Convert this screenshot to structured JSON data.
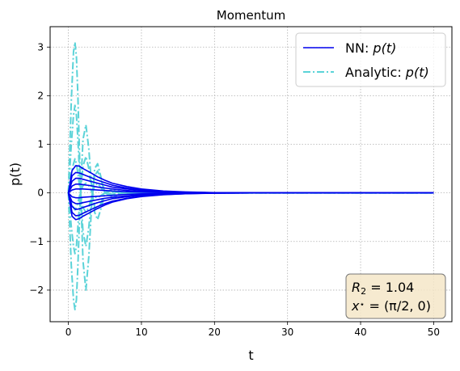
{
  "chart_data": {
    "type": "line",
    "title": "Momentum",
    "xlabel": "t",
    "ylabel": "p(t)",
    "xlim": [
      -2.5,
      52.5
    ],
    "ylim": [
      -2.65,
      3.42
    ],
    "xticks": [
      0,
      10,
      20,
      30,
      40,
      50
    ],
    "xtick_labels": [
      "0",
      "10",
      "20",
      "30",
      "40",
      "50"
    ],
    "yticks": [
      -2,
      -1,
      0,
      1,
      2,
      3
    ],
    "ytick_labels": [
      "−2",
      "−1",
      "0",
      "1",
      "2",
      "3"
    ],
    "grid": true,
    "legend_position": "top-right",
    "legend": [
      {
        "label_prefix": "NN: ",
        "label_math": "p(t)",
        "color": "#0000ee",
        "style": "solid"
      },
      {
        "label_prefix": "Analytic: ",
        "label_math": "p(t)",
        "color": "#5bd3d8",
        "style": "dashdot"
      }
    ],
    "annotation": {
      "lines": [
        {
          "parts": [
            {
              "text": "R",
              "italic": true
            },
            {
              "text": "2",
              "sub": true
            },
            {
              "text": " = 1.04"
            }
          ]
        },
        {
          "parts": [
            {
              "text": "x",
              "italic": true
            },
            {
              "text": "⋆",
              "sup": true
            },
            {
              "text": " = (π/2, 0)"
            }
          ]
        }
      ],
      "position": "bottom-right",
      "background": "#f5e6c8"
    },
    "series": [
      {
        "group": "NN",
        "color": "#0000ee",
        "x": [
          0,
          0.5,
          1,
          1.5,
          2,
          3,
          4,
          5,
          6,
          8,
          10,
          13,
          16,
          20,
          25,
          30,
          40,
          50
        ],
        "y": [
          0,
          0.46,
          0.56,
          0.55,
          0.5,
          0.42,
          0.33,
          0.26,
          0.2,
          0.13,
          0.08,
          0.04,
          0.02,
          0.005,
          0,
          0,
          0,
          0
        ]
      },
      {
        "group": "NN",
        "color": "#0000ee",
        "x": [
          0,
          0.5,
          1,
          1.5,
          2,
          3,
          4,
          5,
          6,
          8,
          10,
          13,
          16,
          20,
          25,
          30,
          40,
          50
        ],
        "y": [
          0,
          0.35,
          0.42,
          0.41,
          0.38,
          0.32,
          0.26,
          0.21,
          0.16,
          0.1,
          0.06,
          0.03,
          0.015,
          0.004,
          0,
          0,
          0,
          0
        ]
      },
      {
        "group": "NN",
        "color": "#0000ee",
        "x": [
          0,
          0.5,
          1,
          1.5,
          2,
          3,
          4,
          5,
          6,
          8,
          10,
          13,
          16,
          20,
          25,
          30,
          40,
          50
        ],
        "y": [
          0,
          0.24,
          0.3,
          0.3,
          0.28,
          0.24,
          0.2,
          0.16,
          0.12,
          0.08,
          0.05,
          0.025,
          0.012,
          0.003,
          0,
          0,
          0,
          0
        ]
      },
      {
        "group": "NN",
        "color": "#0000ee",
        "x": [
          0,
          0.5,
          1,
          1.5,
          2,
          3,
          4,
          5,
          6,
          8,
          10,
          13,
          16,
          20,
          25,
          30,
          40,
          50
        ],
        "y": [
          0,
          0.14,
          0.18,
          0.18,
          0.17,
          0.15,
          0.12,
          0.1,
          0.08,
          0.05,
          0.03,
          0.015,
          0.007,
          0.002,
          0,
          0,
          0,
          0
        ]
      },
      {
        "group": "NN",
        "color": "#0000ee",
        "x": [
          0,
          0.5,
          1,
          1.5,
          2,
          3,
          4,
          5,
          6,
          8,
          10,
          13,
          16,
          20,
          25,
          30,
          40,
          50
        ],
        "y": [
          0,
          0.06,
          0.08,
          0.08,
          0.08,
          0.07,
          0.06,
          0.05,
          0.04,
          0.025,
          0.015,
          0.008,
          0.004,
          0.001,
          0,
          0,
          0,
          0
        ]
      },
      {
        "group": "NN",
        "color": "#0000ee",
        "x": [
          0,
          0.5,
          1,
          1.5,
          2,
          3,
          4,
          5,
          6,
          8,
          10,
          13,
          16,
          20,
          25,
          30,
          40,
          50
        ],
        "y": [
          0,
          -0.08,
          -0.1,
          -0.1,
          -0.09,
          -0.08,
          -0.07,
          -0.06,
          -0.05,
          -0.03,
          -0.02,
          -0.01,
          -0.005,
          -0.001,
          0,
          0,
          0,
          0
        ]
      },
      {
        "group": "NN",
        "color": "#0000ee",
        "x": [
          0,
          0.5,
          1,
          1.5,
          2,
          3,
          4,
          5,
          6,
          8,
          10,
          13,
          16,
          20,
          25,
          30,
          40,
          50
        ],
        "y": [
          0,
          -0.18,
          -0.22,
          -0.22,
          -0.2,
          -0.17,
          -0.14,
          -0.11,
          -0.09,
          -0.06,
          -0.035,
          -0.018,
          -0.009,
          -0.002,
          0,
          0,
          0,
          0
        ]
      },
      {
        "group": "NN",
        "color": "#0000ee",
        "x": [
          0,
          0.5,
          1,
          1.5,
          2,
          3,
          4,
          5,
          6,
          8,
          10,
          13,
          16,
          20,
          25,
          30,
          40,
          50
        ],
        "y": [
          0,
          -0.28,
          -0.34,
          -0.33,
          -0.3,
          -0.25,
          -0.2,
          -0.16,
          -0.12,
          -0.08,
          -0.05,
          -0.025,
          -0.012,
          -0.003,
          0,
          0,
          0,
          0
        ]
      },
      {
        "group": "NN",
        "color": "#0000ee",
        "x": [
          0,
          0.5,
          1,
          1.5,
          2,
          3,
          4,
          5,
          6,
          8,
          10,
          13,
          16,
          20,
          25,
          30,
          40,
          50
        ],
        "y": [
          0,
          -0.4,
          -0.47,
          -0.46,
          -0.42,
          -0.35,
          -0.28,
          -0.22,
          -0.17,
          -0.11,
          -0.07,
          -0.035,
          -0.017,
          -0.004,
          0,
          0,
          0,
          0
        ]
      },
      {
        "group": "NN",
        "color": "#0000ee",
        "x": [
          0,
          0.5,
          1,
          1.5,
          2,
          3,
          4,
          5,
          6,
          8,
          10,
          13,
          16,
          20,
          25,
          30,
          40,
          50
        ],
        "y": [
          0,
          -0.48,
          -0.55,
          -0.53,
          -0.48,
          -0.4,
          -0.32,
          -0.25,
          -0.19,
          -0.12,
          -0.075,
          -0.038,
          -0.018,
          -0.005,
          0,
          0,
          0,
          0
        ]
      },
      {
        "group": "Analytic",
        "color": "#5bd3d8",
        "x": [
          0,
          0.4,
          0.7,
          0.9,
          1.1,
          1.3,
          1.6,
          2,
          2.4,
          2.8,
          3.2,
          3.6,
          4,
          4.5,
          5,
          6,
          8,
          10,
          15,
          20,
          30,
          40,
          50
        ],
        "y": [
          0,
          1.9,
          2.9,
          3.1,
          2.8,
          2,
          0.4,
          -1.4,
          -2.0,
          -1.3,
          -0.2,
          0.5,
          0.6,
          0.3,
          0,
          -0.1,
          0.03,
          0,
          0,
          0,
          0,
          0,
          0
        ]
      },
      {
        "group": "Analytic",
        "color": "#5bd3d8",
        "x": [
          0,
          0.4,
          0.7,
          0.9,
          1.1,
          1.3,
          1.6,
          2,
          2.4,
          2.8,
          3.2,
          3.6,
          4,
          4.5,
          5,
          6,
          8,
          10,
          15,
          20,
          30,
          40,
          50
        ],
        "y": [
          0,
          -1.5,
          -2.2,
          -2.4,
          -2.2,
          -1.5,
          -0.2,
          1.1,
          1.4,
          0.9,
          0.1,
          -0.4,
          -0.55,
          -0.3,
          0,
          0.08,
          -0.02,
          0,
          0,
          0,
          0,
          0,
          0
        ]
      },
      {
        "group": "Analytic",
        "color": "#5bd3d8",
        "x": [
          0,
          0.4,
          0.7,
          0.9,
          1.1,
          1.3,
          1.6,
          2,
          2.4,
          2.8,
          3.2,
          3.6,
          4,
          4.5,
          5,
          6,
          8,
          10,
          15,
          20,
          30,
          40,
          50
        ],
        "y": [
          0,
          1.0,
          1.6,
          1.8,
          1.6,
          1.1,
          0.2,
          -0.8,
          -1.1,
          -0.7,
          -0.1,
          0.35,
          0.45,
          0.25,
          0,
          -0.07,
          0.02,
          0,
          0,
          0,
          0,
          0,
          0
        ]
      },
      {
        "group": "Analytic",
        "color": "#5bd3d8",
        "x": [
          0,
          0.4,
          0.7,
          0.9,
          1.1,
          1.3,
          1.6,
          2,
          2.4,
          2.8,
          3.2,
          3.6,
          4,
          4.5,
          5,
          6,
          8,
          10,
          15,
          20,
          30,
          40,
          50
        ],
        "y": [
          0,
          -0.7,
          -1.1,
          -1.25,
          -1.1,
          -0.7,
          -0.1,
          0.55,
          0.75,
          0.5,
          0.05,
          -0.3,
          -0.35,
          -0.2,
          0,
          0.05,
          -0.01,
          0,
          0,
          0,
          0,
          0,
          0
        ]
      },
      {
        "group": "Analytic",
        "color": "#5bd3d8",
        "x": [
          0,
          0.4,
          0.7,
          0.9,
          1.1,
          1.3,
          1.6,
          2,
          2.4,
          2.8,
          3.2,
          3.6,
          4,
          4.5,
          5,
          6,
          8,
          10,
          15,
          20,
          30,
          40,
          50
        ],
        "y": [
          0,
          0.4,
          0.6,
          0.7,
          0.6,
          0.4,
          0.05,
          -0.3,
          -0.4,
          -0.3,
          -0.05,
          0.15,
          0.2,
          0.1,
          0,
          -0.03,
          0.01,
          0,
          0,
          0,
          0,
          0,
          0
        ]
      },
      {
        "group": "Analytic",
        "color": "#5bd3d8",
        "x": [
          0,
          0.4,
          0.7,
          0.9,
          1.1,
          1.3,
          1.6,
          2,
          2.4,
          2.8,
          3.2,
          3.6,
          4,
          4.5,
          5,
          6,
          8,
          10,
          15,
          20,
          30,
          40,
          50
        ],
        "y": [
          0,
          -0.2,
          -0.3,
          -0.35,
          -0.3,
          -0.2,
          -0.02,
          0.15,
          0.2,
          0.15,
          0.02,
          -0.08,
          -0.1,
          -0.05,
          0,
          0.02,
          0,
          0,
          0,
          0,
          0,
          0,
          0
        ]
      }
    ]
  }
}
